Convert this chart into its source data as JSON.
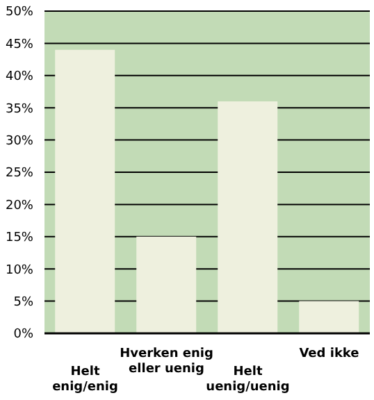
{
  "chart_data": {
    "type": "bar",
    "categories": [
      "Helt enig/enig",
      "Hverken enig eller uenig",
      "Helt uenig/uenig",
      "Ved ikke"
    ],
    "values": [
      44,
      15,
      36,
      5
    ],
    "color": "#eef0de",
    "ylim": [
      0,
      50
    ],
    "yticks": [
      {
        "value": 0,
        "label": "0%"
      },
      {
        "value": 5,
        "label": "5%"
      },
      {
        "value": 10,
        "label": "10%"
      },
      {
        "value": 15,
        "label": "15%"
      },
      {
        "value": 20,
        "label": "20%"
      },
      {
        "value": 25,
        "label": "25%"
      },
      {
        "value": 30,
        "label": "30%"
      },
      {
        "value": 35,
        "label": "35%"
      },
      {
        "value": 40,
        "label": "40%"
      },
      {
        "value": 45,
        "label": "45%"
      },
      {
        "value": 50,
        "label": "50%"
      }
    ],
    "grid": "y"
  }
}
